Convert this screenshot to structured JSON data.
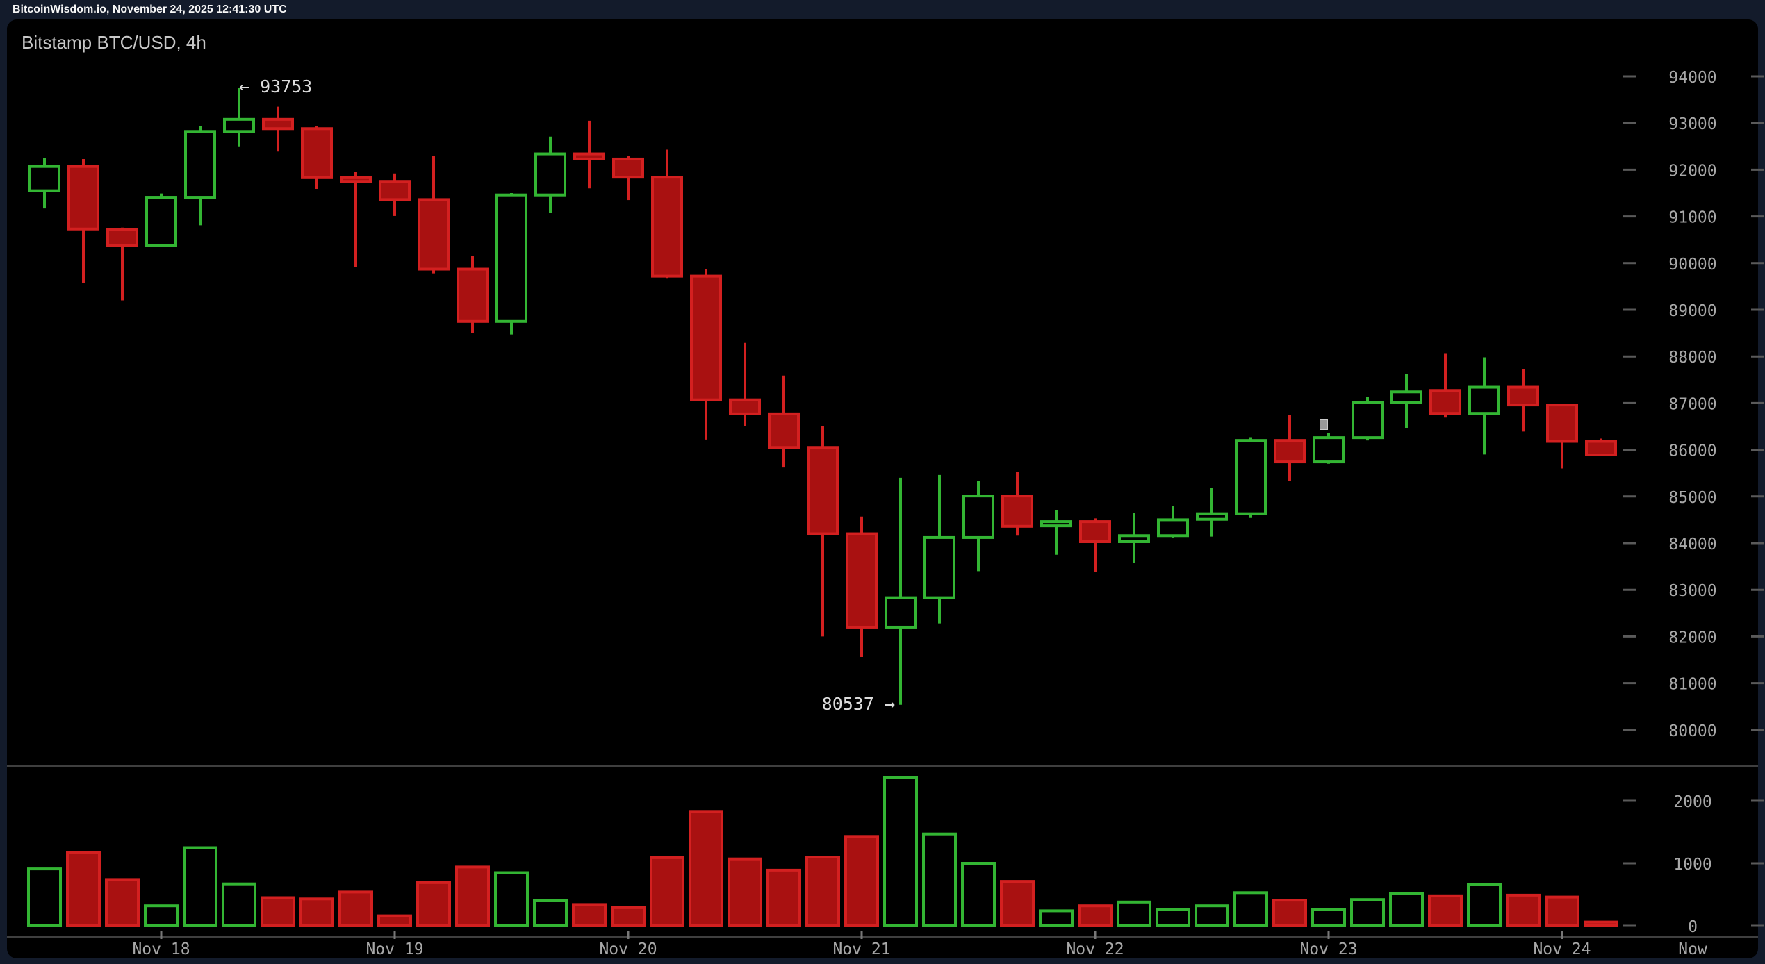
{
  "header": {
    "title": "BitcoinWisdom.io, November 24, 2025 12:41:30 UTC"
  },
  "chart": {
    "title": "Bitstamp BTC/USD, 4h"
  },
  "annotations": {
    "high_label": "← 93753",
    "low_label": "80537 →"
  },
  "colors": {
    "background": "#000000",
    "frame": "#131b2b",
    "up": "#33b533",
    "down_fill": "#a91111",
    "down_stroke": "#d32020",
    "axis_text": "#a8a8a8",
    "axis_dash": "#5a5a5a",
    "separator": "#3f3f3f",
    "annotation_text": "#dcdcdc"
  },
  "chart_data": {
    "type": "candlestick+volume",
    "title": "Bitstamp BTC/USD, 4h",
    "exchange": "Bitstamp",
    "pair": "BTC/USD",
    "interval": "4h",
    "legend_position": "none",
    "grid": false,
    "high_annotation": {
      "value": 93753,
      "candle_index": 5
    },
    "low_annotation": {
      "value": 80537,
      "candle_index": 22
    },
    "price_axis": {
      "ticks": [
        94000,
        93000,
        92000,
        91000,
        90000,
        89000,
        88000,
        87000,
        86000,
        85000,
        84000,
        83000,
        82000,
        81000,
        80000
      ]
    },
    "volume_axis": {
      "ticks": [
        2000,
        1000,
        0
      ]
    },
    "date_ticks": [
      {
        "i": 3,
        "label": "Nov 18"
      },
      {
        "i": 9,
        "label": "Nov 19"
      },
      {
        "i": 15,
        "label": "Nov 20"
      },
      {
        "i": 21,
        "label": "Nov 21"
      },
      {
        "i": 27,
        "label": "Nov 22"
      },
      {
        "i": 33,
        "label": "Nov 23"
      },
      {
        "i": 39,
        "label": "Nov 24"
      }
    ],
    "now_label": "Now",
    "columns": [
      "open",
      "high",
      "low",
      "close",
      "volume"
    ],
    "candles": [
      [
        91550,
        92250,
        91170,
        92070,
        910
      ],
      [
        92070,
        92230,
        89570,
        90730,
        1170
      ],
      [
        90720,
        90760,
        89200,
        90380,
        740
      ],
      [
        90380,
        91490,
        90340,
        91410,
        320
      ],
      [
        91410,
        92930,
        90810,
        92820,
        1250
      ],
      [
        92820,
        93753,
        92500,
        93080,
        670
      ],
      [
        93080,
        93350,
        92390,
        92880,
        450
      ],
      [
        92880,
        92940,
        91590,
        91830,
        430
      ],
      [
        91830,
        91950,
        89920,
        91750,
        540
      ],
      [
        91750,
        91920,
        91010,
        91360,
        160
      ],
      [
        91360,
        92290,
        89780,
        89870,
        690
      ],
      [
        89870,
        90150,
        88500,
        88750,
        940
      ],
      [
        88750,
        91500,
        88470,
        91460,
        850
      ],
      [
        91460,
        92710,
        91080,
        92340,
        400
      ],
      [
        92340,
        93050,
        91600,
        92230,
        340
      ],
      [
        92230,
        92290,
        91350,
        91840,
        290
      ],
      [
        91840,
        92430,
        89680,
        89720,
        1090
      ],
      [
        89720,
        89870,
        86220,
        87070,
        1830
      ],
      [
        87070,
        88290,
        86500,
        86770,
        1070
      ],
      [
        86770,
        87590,
        85620,
        86050,
        890
      ],
      [
        86050,
        86510,
        82000,
        84200,
        1100
      ],
      [
        84200,
        84570,
        81560,
        82200,
        1430
      ],
      [
        82200,
        85400,
        80537,
        82830,
        2370
      ],
      [
        82830,
        85460,
        82280,
        84120,
        1470
      ],
      [
        84120,
        85330,
        83400,
        85010,
        1000
      ],
      [
        85010,
        85530,
        84160,
        84360,
        710
      ],
      [
        84370,
        84710,
        83750,
        84460,
        240
      ],
      [
        84460,
        84530,
        83390,
        84030,
        320
      ],
      [
        84030,
        84650,
        83570,
        84160,
        380
      ],
      [
        84160,
        84800,
        84120,
        84500,
        260
      ],
      [
        84510,
        85180,
        84140,
        84630,
        320
      ],
      [
        84630,
        86270,
        84540,
        86200,
        530
      ],
      [
        86200,
        86750,
        85330,
        85740,
        410
      ],
      [
        85740,
        86360,
        85700,
        86260,
        260
      ],
      [
        86260,
        87140,
        86200,
        87020,
        420
      ],
      [
        87020,
        87620,
        86470,
        87240,
        520
      ],
      [
        87270,
        88070,
        86690,
        86780,
        480
      ],
      [
        86780,
        87980,
        85900,
        87340,
        660
      ],
      [
        87340,
        87730,
        86390,
        86960,
        490
      ],
      [
        86960,
        86990,
        85600,
        86180,
        460
      ],
      [
        86180,
        86240,
        85870,
        85890,
        60
      ]
    ]
  }
}
